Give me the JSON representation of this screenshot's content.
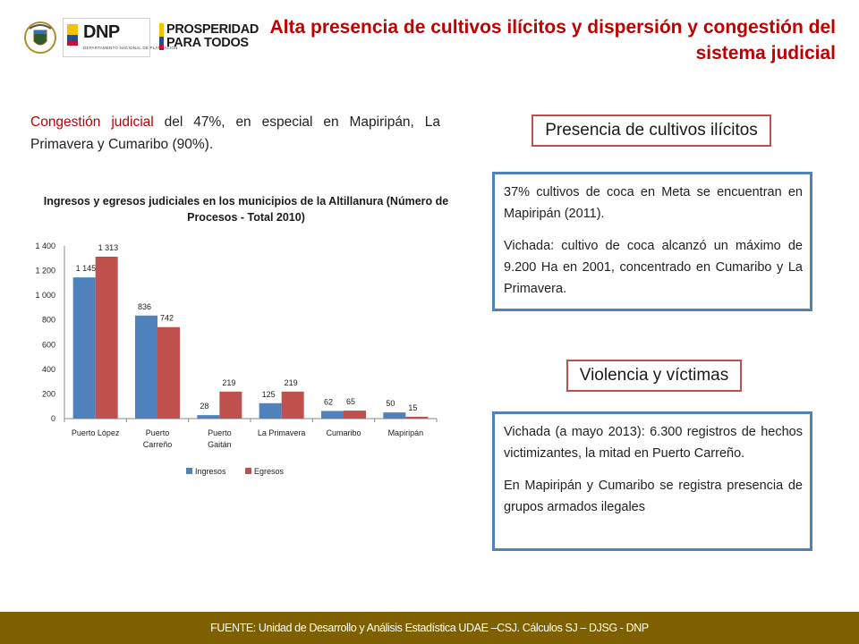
{
  "header": {
    "dnp_logo": "DNP",
    "dnp_subtitle": "DEPARTAMENTO NACIONAL DE PLANEACIÓN",
    "prosperidad_logo": [
      "PROSPERIDAD",
      "PARA TODOS"
    ],
    "title": "Alta presencia de cultivos ilícitos y dispersión y congestión del sistema judicial"
  },
  "intro": {
    "highlight": "Congestión judicial",
    "rest": " del 47%, en especial en Mapiripán, La Primavera y Cumaribo (90%)."
  },
  "chart_data": {
    "type": "bar",
    "title": "Ingresos y egresos judiciales en los municipios de la Altillanura (Número de Procesos - Total 2010)",
    "categories": [
      "Puerto López",
      "Puerto Carreño",
      "Puerto Gaitán",
      "La Primavera",
      "Cumaribo",
      "Mapiripán"
    ],
    "category_lines": [
      [
        "Puerto López"
      ],
      [
        "Puerto",
        "Carreño"
      ],
      [
        "Puerto",
        "Gaitán"
      ],
      [
        "La Primavera"
      ],
      [
        "Cumaribo"
      ],
      [
        "Mapiripán"
      ]
    ],
    "series": [
      {
        "name": "Ingresos",
        "color": "#4f81bd",
        "values": [
          1145,
          836,
          28,
          125,
          62,
          50
        ],
        "labels": [
          "1 145",
          "836",
          "28",
          "125",
          "62",
          "50"
        ]
      },
      {
        "name": "Egresos",
        "color": "#c0504d",
        "values": [
          1313,
          742,
          219,
          219,
          65,
          15
        ],
        "labels": [
          "1 313",
          "742",
          "219",
          "219",
          "65",
          "15"
        ]
      }
    ],
    "ylim": [
      0,
      1400
    ],
    "yticks": [
      0,
      200,
      400,
      600,
      800,
      1000,
      1200,
      1400
    ],
    "ytick_labels": [
      "0",
      "200",
      "400",
      "600",
      "800",
      "1 000",
      "1 200",
      "1 400"
    ],
    "grid": false,
    "legend_position": "bottom"
  },
  "panels": {
    "cultivos": {
      "label": "Presencia de cultivos ilícitos",
      "paragraphs": [
        "37%  cultivos de coca en Meta se encuentran en Mapiripán (2011).",
        "Vichada: cultivo de coca alcanzó un máximo de 9.200 Ha en 2001, concentrado en Cumaribo y La Primavera."
      ]
    },
    "violencia": {
      "label": "Violencia y víctimas",
      "paragraphs": [
        "Vichada (a mayo 2013): 6.300 registros de hechos victimizantes, la mitad en Puerto Carreño.",
        "En Mapiripán y Cumaribo se registra presencia de grupos armados ilegales"
      ]
    }
  },
  "footer": "FUENTE: Unidad de Desarrollo y Análisis Estadística UDAE –CSJ. Cálculos SJ – DJSG - DNP",
  "colors": {
    "accent_red": "#c00000",
    "box_red": "#c0504d",
    "box_blue": "#4f81bd",
    "footer_bg": "#7f6000"
  }
}
